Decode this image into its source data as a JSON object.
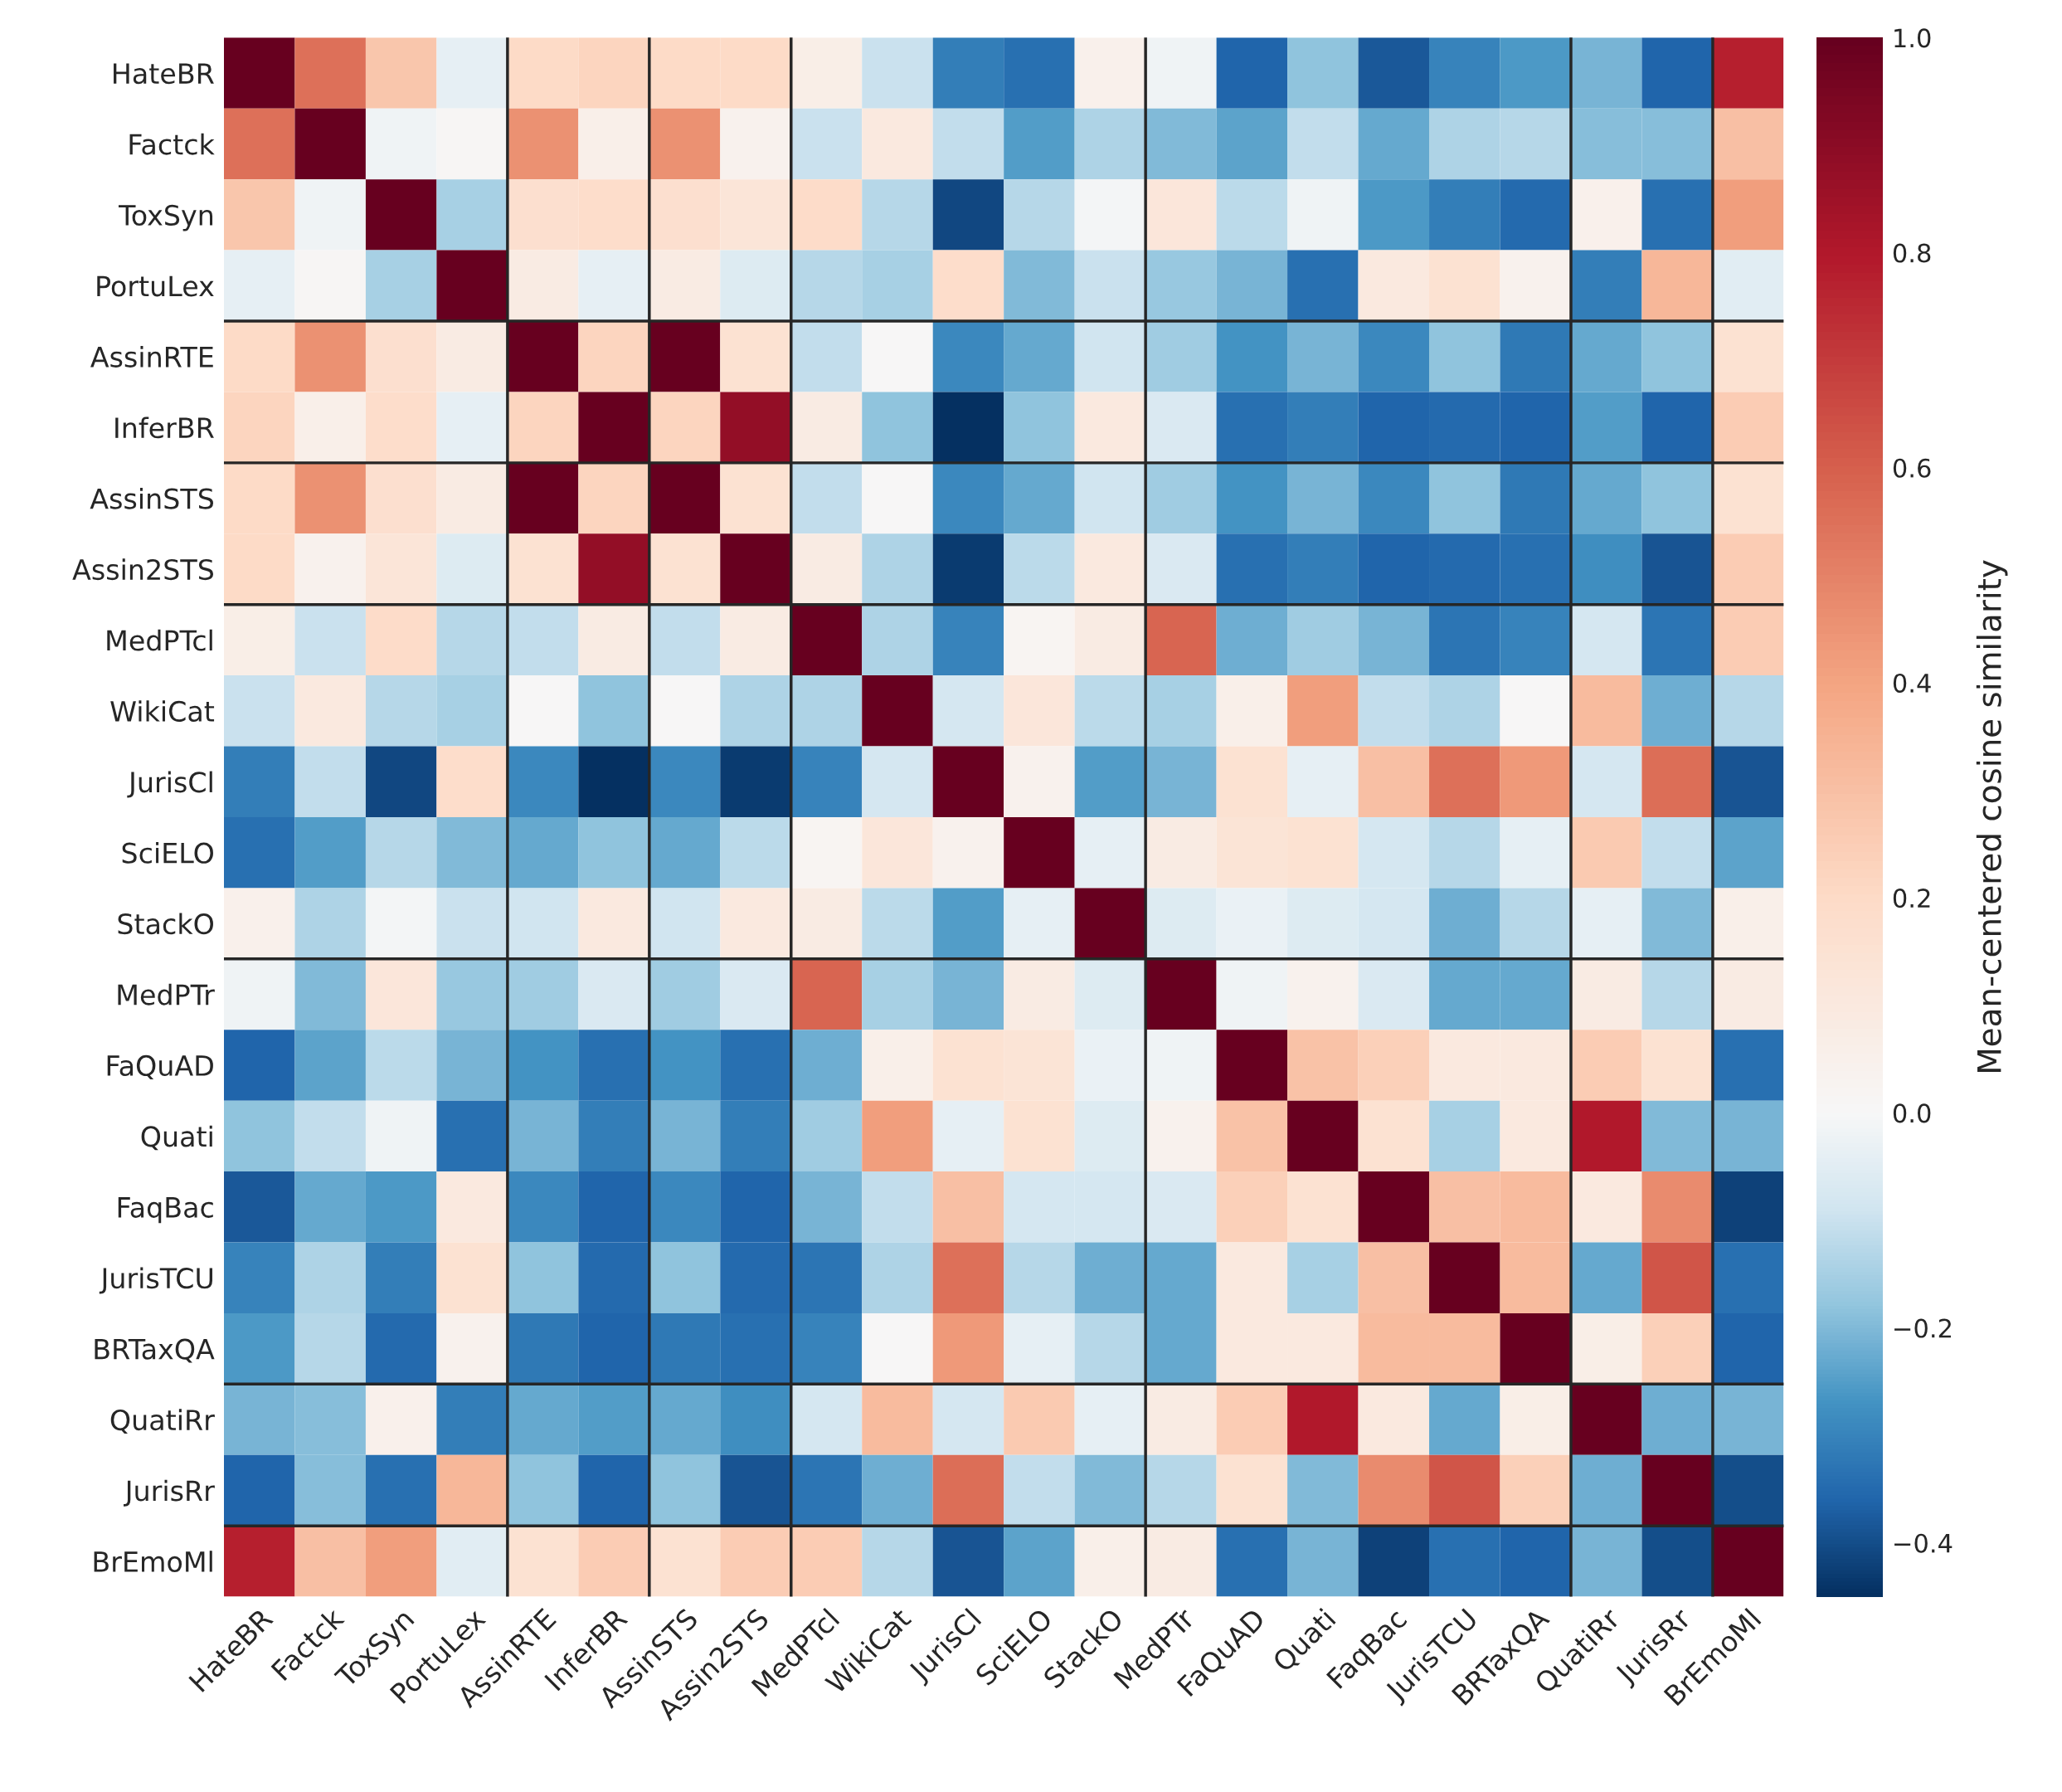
{
  "chart_data": {
    "type": "heatmap",
    "clabel": "Mean-centered cosine similarity",
    "categories": [
      "HateBR",
      "Factck",
      "ToxSyn",
      "PortuLex",
      "AssinRTE",
      "InferBR",
      "AssinSTS",
      "Assin2STS",
      "MedPTcl",
      "WikiCat",
      "JurisCl",
      "SciELO",
      "StackO",
      "MedPTr",
      "FaQuAD",
      "Quati",
      "FaqBac",
      "JurisTCU",
      "BRTaxQA",
      "QuatiRr",
      "JurisRr",
      "BrEmoMl"
    ],
    "y_categories": [
      "HateBR",
      "Factck",
      "ToxSyn",
      "PortuLex",
      "AssinRTE",
      "InferBR",
      "AssinSTS",
      "Assin2STS",
      "MedPTcl",
      "WikiCat",
      "JurisCl",
      "SciELO",
      "StackO",
      "MedPTr",
      "FaQuAD",
      "Quati",
      "FaqBac",
      "JurisTCU",
      "BRTaxQA",
      "QuatiRr",
      "JurisRr",
      "BrEmoMl"
    ],
    "cells": [
      [
        1,
        0.55,
        0.28,
        -0.04,
        0.2,
        0.22,
        0.2,
        0.2,
        0.07,
        -0.1,
        -0.31,
        -0.34,
        0.05,
        -0.02,
        -0.36,
        -0.18,
        -0.38,
        -0.3,
        -0.26,
        -0.21,
        -0.36,
        0.78
      ],
      [
        0.55,
        1,
        -0.02,
        0.01,
        0.46,
        0.06,
        0.46,
        0.04,
        -0.1,
        0.1,
        -0.11,
        -0.25,
        -0.14,
        -0.2,
        -0.24,
        -0.11,
        -0.23,
        -0.14,
        -0.13,
        -0.19,
        -0.19,
        0.3
      ],
      [
        0.28,
        -0.02,
        1,
        -0.15,
        0.17,
        0.18,
        0.17,
        0.13,
        0.19,
        -0.13,
        -0.41,
        -0.13,
        -0.01,
        0.12,
        -0.12,
        -0.02,
        -0.26,
        -0.31,
        -0.35,
        0.05,
        -0.34,
        0.42
      ],
      [
        -0.04,
        0.01,
        -0.15,
        1,
        0.08,
        -0.04,
        0.08,
        -0.06,
        -0.13,
        -0.15,
        0.18,
        -0.2,
        -0.1,
        -0.17,
        -0.21,
        -0.34,
        0.1,
        0.15,
        0.04,
        -0.31,
        0.33,
        -0.05
      ],
      [
        0.2,
        0.46,
        0.17,
        0.08,
        1,
        0.22,
        1,
        0.15,
        -0.11,
        0.0,
        -0.29,
        -0.23,
        -0.09,
        -0.16,
        -0.27,
        -0.21,
        -0.29,
        -0.18,
        -0.32,
        -0.23,
        -0.18,
        0.15
      ],
      [
        0.22,
        0.06,
        0.18,
        -0.04,
        0.22,
        1,
        0.22,
        0.88,
        0.08,
        -0.18,
        -0.45,
        -0.18,
        0.1,
        -0.07,
        -0.34,
        -0.31,
        -0.36,
        -0.35,
        -0.36,
        -0.25,
        -0.36,
        0.25
      ],
      [
        0.2,
        0.46,
        0.17,
        0.08,
        1,
        0.22,
        1,
        0.15,
        -0.11,
        0.0,
        -0.29,
        -0.23,
        -0.09,
        -0.16,
        -0.27,
        -0.21,
        -0.29,
        -0.18,
        -0.32,
        -0.23,
        -0.18,
        0.15
      ],
      [
        0.2,
        0.04,
        0.13,
        -0.06,
        0.15,
        0.88,
        0.15,
        1,
        0.08,
        -0.14,
        -0.43,
        -0.12,
        0.1,
        -0.07,
        -0.34,
        -0.31,
        -0.36,
        -0.35,
        -0.34,
        -0.28,
        -0.39,
        0.25
      ],
      [
        0.07,
        -0.1,
        0.19,
        -0.13,
        -0.11,
        0.08,
        -0.11,
        0.08,
        1,
        -0.14,
        -0.3,
        0.02,
        0.08,
        0.58,
        -0.22,
        -0.16,
        -0.21,
        -0.33,
        -0.3,
        -0.08,
        -0.33,
        0.25
      ],
      [
        -0.1,
        0.1,
        -0.13,
        -0.15,
        0.0,
        -0.18,
        0.0,
        -0.14,
        -0.14,
        1,
        -0.08,
        0.12,
        -0.12,
        -0.15,
        0.06,
        0.42,
        -0.11,
        -0.14,
        0.0,
        0.32,
        -0.22,
        -0.13
      ],
      [
        -0.31,
        -0.11,
        -0.41,
        0.18,
        -0.29,
        -0.45,
        -0.29,
        -0.43,
        -0.3,
        -0.08,
        1,
        0.04,
        -0.25,
        -0.21,
        0.15,
        -0.04,
        0.3,
        0.55,
        0.43,
        -0.08,
        0.56,
        -0.39
      ],
      [
        -0.34,
        -0.25,
        -0.13,
        -0.2,
        -0.23,
        -0.18,
        -0.23,
        -0.12,
        0.02,
        0.12,
        0.04,
        1,
        -0.04,
        0.08,
        0.14,
        0.15,
        -0.08,
        -0.13,
        -0.04,
        0.26,
        -0.11,
        -0.24
      ],
      [
        0.05,
        -0.14,
        -0.01,
        -0.1,
        -0.09,
        0.1,
        -0.09,
        0.1,
        0.08,
        -0.12,
        -0.25,
        -0.04,
        1,
        -0.06,
        -0.03,
        -0.06,
        -0.08,
        -0.22,
        -0.13,
        -0.04,
        -0.2,
        0.06
      ],
      [
        -0.02,
        -0.2,
        0.12,
        -0.17,
        -0.16,
        -0.07,
        -0.16,
        -0.07,
        0.58,
        -0.15,
        -0.21,
        0.08,
        -0.06,
        1,
        -0.02,
        0.04,
        -0.07,
        -0.23,
        -0.23,
        0.08,
        -0.13,
        0.08
      ],
      [
        -0.36,
        -0.24,
        -0.12,
        -0.21,
        -0.27,
        -0.34,
        -0.27,
        -0.34,
        -0.22,
        0.06,
        0.15,
        0.14,
        -0.03,
        -0.02,
        1,
        0.29,
        0.24,
        0.1,
        0.1,
        0.25,
        0.15,
        -0.34
      ],
      [
        -0.18,
        -0.11,
        -0.02,
        -0.34,
        -0.21,
        -0.31,
        -0.21,
        -0.31,
        -0.16,
        0.42,
        -0.04,
        0.15,
        -0.06,
        0.04,
        0.29,
        1,
        0.15,
        -0.15,
        0.1,
        0.8,
        -0.2,
        -0.21
      ],
      [
        -0.38,
        -0.23,
        -0.26,
        0.1,
        -0.29,
        -0.36,
        -0.29,
        -0.36,
        -0.21,
        -0.11,
        0.3,
        -0.08,
        -0.08,
        -0.07,
        0.24,
        0.15,
        1,
        0.3,
        0.32,
        0.1,
        0.47,
        -0.42
      ],
      [
        -0.3,
        -0.14,
        -0.31,
        0.15,
        -0.18,
        -0.35,
        -0.18,
        -0.35,
        -0.33,
        -0.14,
        0.55,
        -0.13,
        -0.22,
        -0.23,
        0.1,
        -0.15,
        0.3,
        1,
        0.32,
        -0.23,
        0.63,
        -0.34
      ],
      [
        -0.26,
        -0.13,
        -0.35,
        0.04,
        -0.32,
        -0.36,
        -0.32,
        -0.34,
        -0.3,
        0.0,
        0.43,
        -0.04,
        -0.13,
        -0.23,
        0.1,
        0.1,
        0.32,
        0.32,
        1,
        0.07,
        0.24,
        -0.36
      ],
      [
        -0.21,
        -0.19,
        0.05,
        -0.31,
        -0.23,
        -0.25,
        -0.23,
        -0.28,
        -0.08,
        0.32,
        -0.08,
        0.26,
        -0.04,
        0.08,
        0.25,
        0.8,
        0.1,
        -0.23,
        0.07,
        1,
        -0.22,
        -0.21
      ],
      [
        -0.36,
        -0.19,
        -0.34,
        0.33,
        -0.18,
        -0.36,
        -0.18,
        -0.39,
        -0.33,
        -0.22,
        0.56,
        -0.11,
        -0.2,
        -0.13,
        0.15,
        -0.2,
        0.47,
        0.63,
        0.24,
        -0.22,
        1,
        -0.4
      ],
      [
        0.78,
        0.3,
        0.42,
        -0.05,
        0.15,
        0.25,
        0.15,
        0.25,
        0.25,
        -0.13,
        -0.39,
        -0.24,
        0.06,
        0.08,
        -0.34,
        -0.21,
        -0.42,
        -0.34,
        -0.36,
        -0.21,
        -0.4,
        1
      ]
    ],
    "clim": [
      -0.45,
      1.0
    ],
    "cticks": [
      {
        "value": -0.4,
        "label": "−0.4"
      },
      {
        "value": -0.2,
        "label": "−0.2"
      },
      {
        "value": 0.0,
        "label": "0.0"
      },
      {
        "value": 0.2,
        "label": "0.2"
      },
      {
        "value": 0.4,
        "label": "0.4"
      },
      {
        "value": 0.6,
        "label": "0.6"
      },
      {
        "value": 0.8,
        "label": "0.8"
      },
      {
        "value": 1.0,
        "label": "1.0"
      }
    ]
  }
}
